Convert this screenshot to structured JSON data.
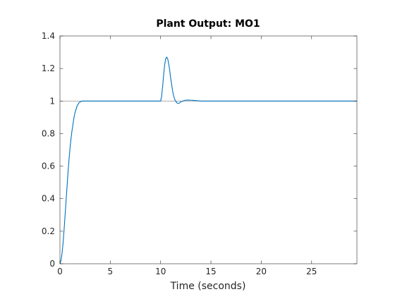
{
  "chart_data": {
    "type": "line",
    "title": "Plant Output:  MO1",
    "xlabel": "Time (seconds)",
    "ylabel": "",
    "xlim": [
      0,
      29.5
    ],
    "ylim": [
      0,
      1.4
    ],
    "xticks": [
      0,
      5,
      10,
      15,
      20,
      25
    ],
    "xtick_labels": [
      "0",
      "5",
      "10",
      "15",
      "20",
      "25"
    ],
    "yticks": [
      0,
      0.2,
      0.4,
      0.6,
      0.8,
      1,
      1.2,
      1.4
    ],
    "ytick_labels": [
      "0",
      "0.2",
      "0.4",
      "0.6",
      "0.8",
      "1",
      "1.2",
      "1.4"
    ],
    "grid": false,
    "series": [
      {
        "color": "#0072bd",
        "x": [
          0,
          0.1,
          0.2,
          0.3,
          0.4,
          0.5,
          0.6,
          0.7,
          0.8,
          0.9,
          1.0,
          1.1,
          1.2,
          1.3,
          1.4,
          1.5,
          1.6,
          1.7,
          1.8,
          1.9,
          2.0,
          2.2,
          2.4,
          2.6,
          2.8,
          3.0,
          5,
          7,
          9,
          9.8,
          10.0,
          10.1,
          10.2,
          10.3,
          10.4,
          10.5,
          10.6,
          10.7,
          10.8,
          10.9,
          11.0,
          11.1,
          11.2,
          11.3,
          11.4,
          11.5,
          11.6,
          11.7,
          11.8,
          11.9,
          12.0,
          12.2,
          12.4,
          12.6,
          12.8,
          13.0,
          13.2,
          13.4,
          13.6,
          13.8,
          14.0,
          14.5,
          15,
          20,
          25,
          29.5
        ],
        "y": [
          0,
          0.02,
          0.06,
          0.12,
          0.2,
          0.29,
          0.38,
          0.47,
          0.56,
          0.64,
          0.71,
          0.77,
          0.82,
          0.86,
          0.9,
          0.93,
          0.95,
          0.97,
          0.98,
          0.99,
          0.995,
          1.0,
          1.0,
          1.0,
          1.0,
          1.0,
          1.0,
          1.0,
          1.0,
          1.0,
          1.0,
          1.03,
          1.09,
          1.16,
          1.22,
          1.26,
          1.27,
          1.26,
          1.23,
          1.19,
          1.14,
          1.1,
          1.06,
          1.03,
          1.01,
          1.0,
          0.99,
          0.985,
          0.985,
          0.99,
          0.995,
          1.0,
          1.004,
          1.006,
          1.006,
          1.005,
          1.004,
          1.003,
          1.002,
          1.001,
          1.0,
          1.0,
          1.0,
          1.0,
          1.0,
          1.0
        ]
      },
      {
        "color": "#a0a0a0",
        "x": [
          0,
          29.5
        ],
        "y": [
          1,
          1
        ]
      }
    ]
  }
}
